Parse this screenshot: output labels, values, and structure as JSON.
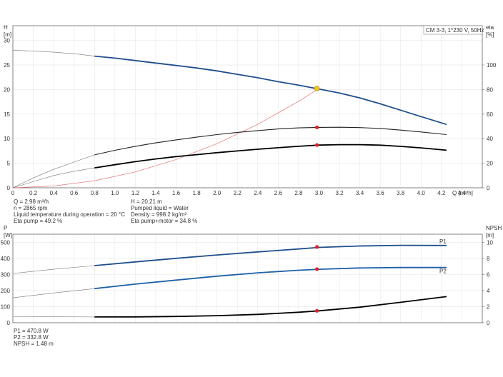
{
  "chart_data": [
    {
      "type": "line",
      "legend": "CM 3-3, 1*230 V, 50Hz",
      "y_axis_label": [
        "H",
        "[m]"
      ],
      "y_axis_label_right": [
        "eta",
        "[%]"
      ],
      "x_axis_label": "Q [m³/h]",
      "x_ticks": [
        "0",
        "0.2",
        "0.4",
        "0.6",
        "0.8",
        "1.0",
        "1.2",
        "1.4",
        "1.6",
        "1.8",
        "2.0",
        "2.2",
        "2.4",
        "2.6",
        "2.8",
        "3.0",
        "3.2",
        "3.4",
        "3.6",
        "3.8",
        "4.0",
        "4.2",
        "4.4"
      ],
      "y_ticks": [
        "0",
        "5",
        "10",
        "15",
        "20",
        "25",
        "30"
      ],
      "y_ticks_right": [
        "0",
        "20",
        "40",
        "60",
        "80",
        "100"
      ],
      "xlim": [
        0,
        4.6
      ],
      "ylim": [
        0,
        33
      ],
      "ylim_right": [
        0,
        132
      ],
      "series": [
        {
          "role": "head",
          "axis": "left",
          "color": "#1f4e8c",
          "x": [
            0,
            0.2,
            0.4,
            0.6,
            0.8,
            1.0,
            1.2,
            1.4,
            1.6,
            1.8,
            2.0,
            2.2,
            2.4,
            2.6,
            2.8,
            3.0,
            3.2,
            3.4,
            3.6,
            3.8,
            4.0,
            4.25
          ],
          "y": [
            28.0,
            27.85,
            27.6,
            27.3,
            26.8,
            26.4,
            25.9,
            25.4,
            24.9,
            24.4,
            23.8,
            23.1,
            22.4,
            21.6,
            20.9,
            20.1,
            19.3,
            18.3,
            17.1,
            15.8,
            14.5,
            12.9
          ],
          "dashed_until": 0.8
        },
        {
          "role": "eta-pump",
          "axis": "right",
          "color": "#222222",
          "x": [
            0,
            0.2,
            0.4,
            0.6,
            0.8,
            1.0,
            1.2,
            1.4,
            1.6,
            1.8,
            2.0,
            2.2,
            2.4,
            2.6,
            2.8,
            3.0,
            3.2,
            3.4,
            3.6,
            3.8,
            4.0,
            4.25
          ],
          "y": [
            0,
            8,
            15,
            21,
            26.8,
            30.5,
            33.8,
            36.6,
            39.0,
            41.2,
            43.3,
            45.1,
            46.6,
            47.9,
            48.8,
            49.2,
            49.3,
            49.0,
            48.3,
            47.0,
            45.5,
            43.3
          ],
          "dashed_until": 0.8
        },
        {
          "role": "eta-pump-motor",
          "axis": "right",
          "color": "#000000",
          "x": [
            0,
            0.2,
            0.4,
            0.6,
            0.8,
            1.0,
            1.2,
            1.4,
            1.6,
            1.8,
            2.0,
            2.2,
            2.4,
            2.6,
            2.8,
            3.0,
            3.2,
            3.4,
            3.6,
            3.8,
            4.0,
            4.25
          ],
          "y": [
            0,
            5,
            10,
            13.5,
            16.2,
            18.8,
            21.3,
            23.5,
            25.4,
            27.0,
            28.6,
            30.0,
            31.4,
            32.6,
            33.8,
            34.8,
            35.1,
            35.1,
            34.7,
            33.7,
            32.5,
            30.6
          ],
          "dashed_until": 0.8
        },
        {
          "role": "system-curve",
          "axis": "left",
          "color": "#e57373",
          "x": [
            0,
            0.4,
            0.8,
            1.2,
            1.6,
            2.0,
            2.4,
            2.8,
            3.0
          ],
          "y": [
            0,
            0.36,
            1.44,
            3.23,
            5.75,
            8.98,
            12.93,
            17.6,
            20.2
          ]
        }
      ],
      "duty_point": {
        "x": 2.98,
        "y": 20.21,
        "color": "#f5c518"
      },
      "markers": [
        {
          "x": 2.98,
          "y": 49.2,
          "axis": "right",
          "color": "#e02020"
        },
        {
          "x": 2.98,
          "y": 34.8,
          "axis": "right",
          "color": "#e02020"
        }
      ]
    },
    {
      "type": "line",
      "y_axis_label": [
        "P",
        "[W]"
      ],
      "y_axis_label_right": [
        "NPSH",
        "[m]"
      ],
      "y_ticks": [
        "0",
        "100",
        "200",
        "300",
        "400",
        "500"
      ],
      "y_ticks_right": [
        "0",
        "2",
        "4",
        "6",
        "8",
        "10"
      ],
      "xlim": [
        0,
        4.6
      ],
      "ylim": [
        0,
        550
      ],
      "ylim_right": [
        0,
        11
      ],
      "series": [
        {
          "name": "P1",
          "axis": "left",
          "color": "#1f4e8c",
          "x": [
            0,
            0.4,
            0.8,
            1.2,
            1.6,
            2.0,
            2.4,
            2.8,
            3.0,
            3.4,
            3.8,
            4.25
          ],
          "y": [
            306,
            332,
            355,
            378,
            400,
            421,
            440,
            458,
            468,
            477,
            481,
            480
          ],
          "dashed_until": 0.8
        },
        {
          "name": "P2",
          "axis": "left",
          "color": "#1f5fa8",
          "x": [
            0,
            0.4,
            0.8,
            1.2,
            1.6,
            2.0,
            2.4,
            2.8,
            3.0,
            3.4,
            3.8,
            4.25
          ],
          "y": [
            155,
            185,
            212,
            240,
            265,
            289,
            310,
            326,
            332,
            340,
            343,
            343
          ],
          "dashed_until": 0.8
        },
        {
          "role": "npsh",
          "axis": "right",
          "color": "#000000",
          "x": [
            0,
            0.4,
            0.8,
            1.2,
            1.6,
            2.0,
            2.4,
            2.8,
            3.0,
            3.4,
            3.8,
            4.25
          ],
          "y": [
            0.75,
            0.74,
            0.72,
            0.73,
            0.78,
            0.88,
            1.04,
            1.3,
            1.48,
            1.93,
            2.54,
            3.25
          ],
          "dashed_until": 0.8
        }
      ],
      "markers": [
        {
          "x": 2.98,
          "y": 470.8,
          "axis": "left",
          "color": "#e02020"
        },
        {
          "x": 2.98,
          "y": 332.8,
          "axis": "left",
          "color": "#e02020"
        },
        {
          "x": 2.98,
          "y": 1.48,
          "axis": "right",
          "color": "#e02020"
        }
      ]
    }
  ],
  "info_top_left": [
    "Q = 2.98 m³/h",
    "n = 2865 rpm",
    "Liquid temperature during operation = 20 °C",
    "Eta pump = 49.2 %"
  ],
  "info_top_right": [
    "H = 20.21 m",
    "Pumped liquid = Water",
    "Density = 998.2 kg/m³",
    "Eta pump+motor = 34.8 %"
  ],
  "info_bottom": [
    "P1 = 470.8 W",
    "P2 = 332.8 W",
    "NPSH = 1.48 m"
  ]
}
